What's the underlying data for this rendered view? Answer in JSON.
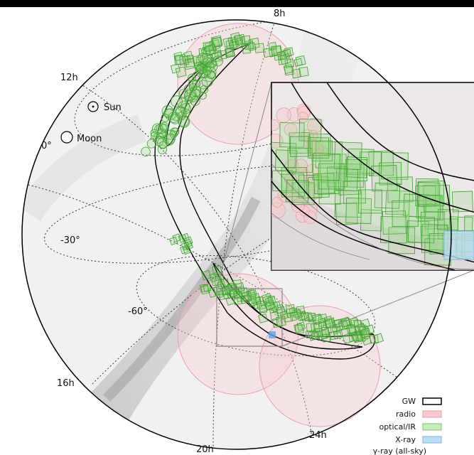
{
  "labels": {
    "ra": [
      "8h",
      "12h",
      "16h",
      "20h",
      "24h"
    ],
    "dec": [
      "0°",
      "-30°",
      "-60°"
    ],
    "sun": "Sun",
    "moon": "Moon"
  },
  "legend": {
    "items": [
      {
        "label": "GW",
        "fill": "none",
        "stroke": "#000000"
      },
      {
        "label": "radio",
        "fill": "#f7c9cf",
        "stroke": "#e79aa4"
      },
      {
        "label": "optical/IR",
        "fill": "#c8ebbd",
        "stroke": "#7fc46c"
      },
      {
        "label": "X-ray",
        "fill": "#bcdcf3",
        "stroke": "#7fb4de"
      },
      {
        "label": "γ-ray (all-sky)",
        "fill": "none",
        "stroke": "none"
      }
    ]
  },
  "colors": {
    "radio": "#e8a0aa",
    "optical": "#3aa02a",
    "xray": "#5aa7dd",
    "gw": "#000000"
  }
}
